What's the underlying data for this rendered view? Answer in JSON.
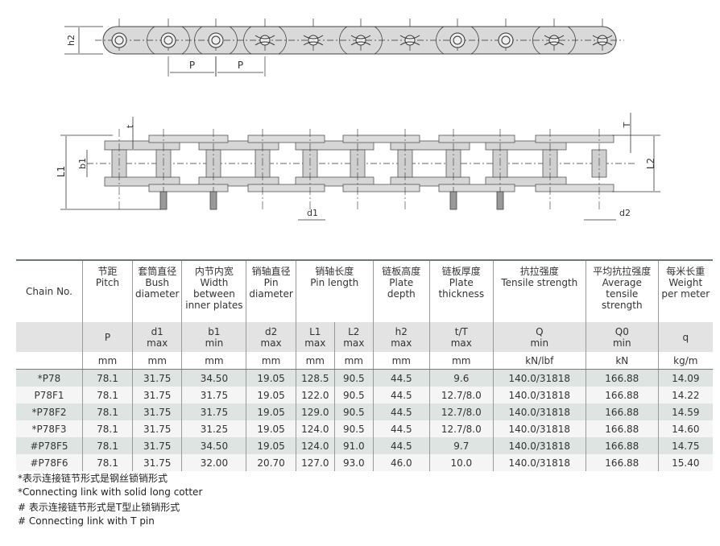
{
  "diagram_labels": {
    "h2": "h2",
    "P": "P",
    "t": "t",
    "T": "T",
    "L1": "L1",
    "b1": "b1",
    "L2": "L2",
    "d1": "d1",
    "d2": "d2"
  },
  "table": {
    "chain_no_label": "Chain No.",
    "columns": [
      {
        "zh": "节距",
        "en": "Pitch",
        "sym": "P",
        "sub": "",
        "unit": "mm"
      },
      {
        "zh": "套筒直径",
        "en": "Bush diameter",
        "sym": "d1",
        "sub": "max",
        "unit": "mm"
      },
      {
        "zh": "内节内宽",
        "en": "Width between inner plates",
        "sym": "b1",
        "sub": "min",
        "unit": "mm"
      },
      {
        "zh": "销轴直径",
        "en": "Pin diameter",
        "sym": "d2",
        "sub": "max",
        "unit": "mm"
      },
      {
        "zh": "销轴长度",
        "en": "Pin length",
        "sym": "L1",
        "sub": "max",
        "unit": "mm",
        "sym2": "L2",
        "sub2": "max",
        "unit2": "mm"
      },
      {
        "zh": "链板高度",
        "en": "Plate depth",
        "sym": "h2",
        "sub": "max",
        "unit": "mm"
      },
      {
        "zh": "链板厚度",
        "en": "Plate thickness",
        "sym": "t/T",
        "sub": "max",
        "unit": "mm"
      },
      {
        "zh": "抗拉强度",
        "en": "Tensile strength",
        "sym": "Q",
        "sub": "min",
        "unit": "kN/lbf"
      },
      {
        "zh": "平均抗拉强度",
        "en": "Average tensile strength",
        "sym": "Q0",
        "sub": "min",
        "unit": "kN"
      },
      {
        "zh": "每米长重",
        "en": "Weight per meter",
        "sym": "q",
        "sub": "",
        "unit": "kg/m"
      }
    ],
    "rows": [
      [
        "*P78",
        "78.1",
        "31.75",
        "34.50",
        "19.05",
        "128.5",
        "90.5",
        "44.5",
        "9.6",
        "140.0/31818",
        "166.88",
        "14.09"
      ],
      [
        "P78F1",
        "78.1",
        "31.75",
        "31.75",
        "19.05",
        "122.0",
        "90.5",
        "44.5",
        "12.7/8.0",
        "140.0/31818",
        "166.88",
        "14.22"
      ],
      [
        "*P78F2",
        "78.1",
        "31.75",
        "31.75",
        "19.05",
        "129.0",
        "90.5",
        "44.5",
        "12.7/8.0",
        "140.0/31818",
        "166.88",
        "14.59"
      ],
      [
        "*P78F3",
        "78.1",
        "31.75",
        "31.25",
        "19.05",
        "124.0",
        "90.5",
        "44.5",
        "12.7/8.0",
        "140.0/31818",
        "166.88",
        "14.60"
      ],
      [
        "#P78F5",
        "78.1",
        "31.75",
        "34.50",
        "19.05",
        "124.0",
        "91.0",
        "44.5",
        "9.7",
        "140.0/31818",
        "166.88",
        "14.75"
      ],
      [
        "#P78F6",
        "78.1",
        "31.75",
        "32.00",
        "20.70",
        "127.0",
        "93.0",
        "46.0",
        "10.0",
        "140.0/31818",
        "166.88",
        "15.40"
      ]
    ]
  },
  "notes": [
    "*表示连接链节形式是钢丝锁销形式",
    "*Connecting link with solid long cotter",
    "# 表示连接链节形式是T型止锁销形式",
    "# Connecting link with T pin"
  ]
}
